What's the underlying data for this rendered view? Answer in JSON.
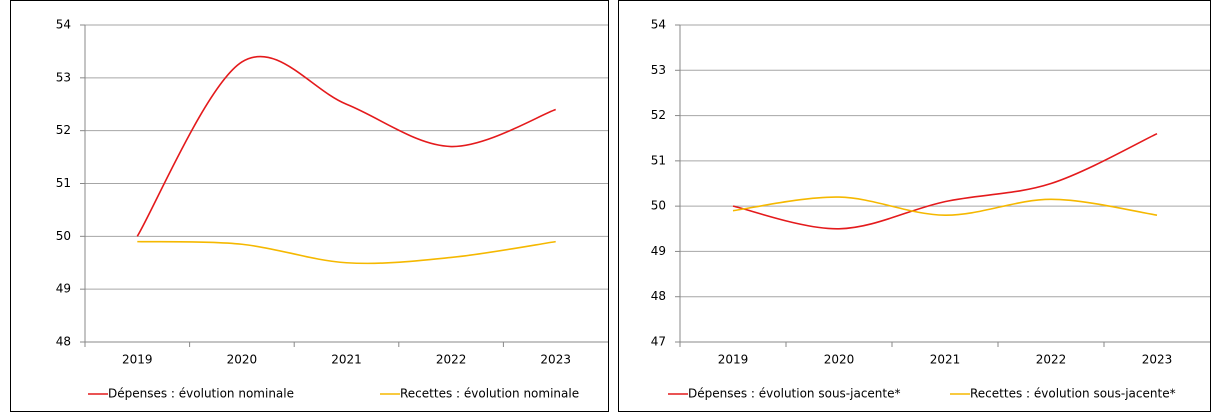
{
  "chart_data": [
    {
      "type": "line",
      "categories": [
        "2019",
        "2020",
        "2021",
        "2022",
        "2023"
      ],
      "series": [
        {
          "name": "Dépenses : évolution nominale",
          "color": "#e41a1c",
          "values": [
            50.0,
            53.3,
            52.5,
            51.7,
            52.4
          ]
        },
        {
          "name": "Recettes : évolution nominale",
          "color": "#f5b800",
          "values": [
            49.9,
            49.85,
            49.5,
            49.6,
            49.9
          ]
        }
      ],
      "ylim": [
        48,
        54
      ],
      "yticks": [
        48,
        49,
        50,
        51,
        52,
        53,
        54
      ],
      "grid": true,
      "smooth": true,
      "legend": "bottom"
    },
    {
      "type": "line",
      "categories": [
        "2019",
        "2020",
        "2021",
        "2022",
        "2023"
      ],
      "series": [
        {
          "name": "Dépenses : évolution sous-jacente*",
          "color": "#e41a1c",
          "values": [
            50.0,
            49.5,
            50.1,
            50.5,
            51.6
          ]
        },
        {
          "name": "Recettes : évolution sous-jacente*",
          "color": "#f5b800",
          "values": [
            49.9,
            50.2,
            49.8,
            50.15,
            49.8
          ]
        }
      ],
      "ylim": [
        47,
        54
      ],
      "yticks": [
        47,
        48,
        49,
        50,
        51,
        52,
        53,
        54
      ],
      "grid": true,
      "smooth": true,
      "legend": "bottom"
    }
  ]
}
